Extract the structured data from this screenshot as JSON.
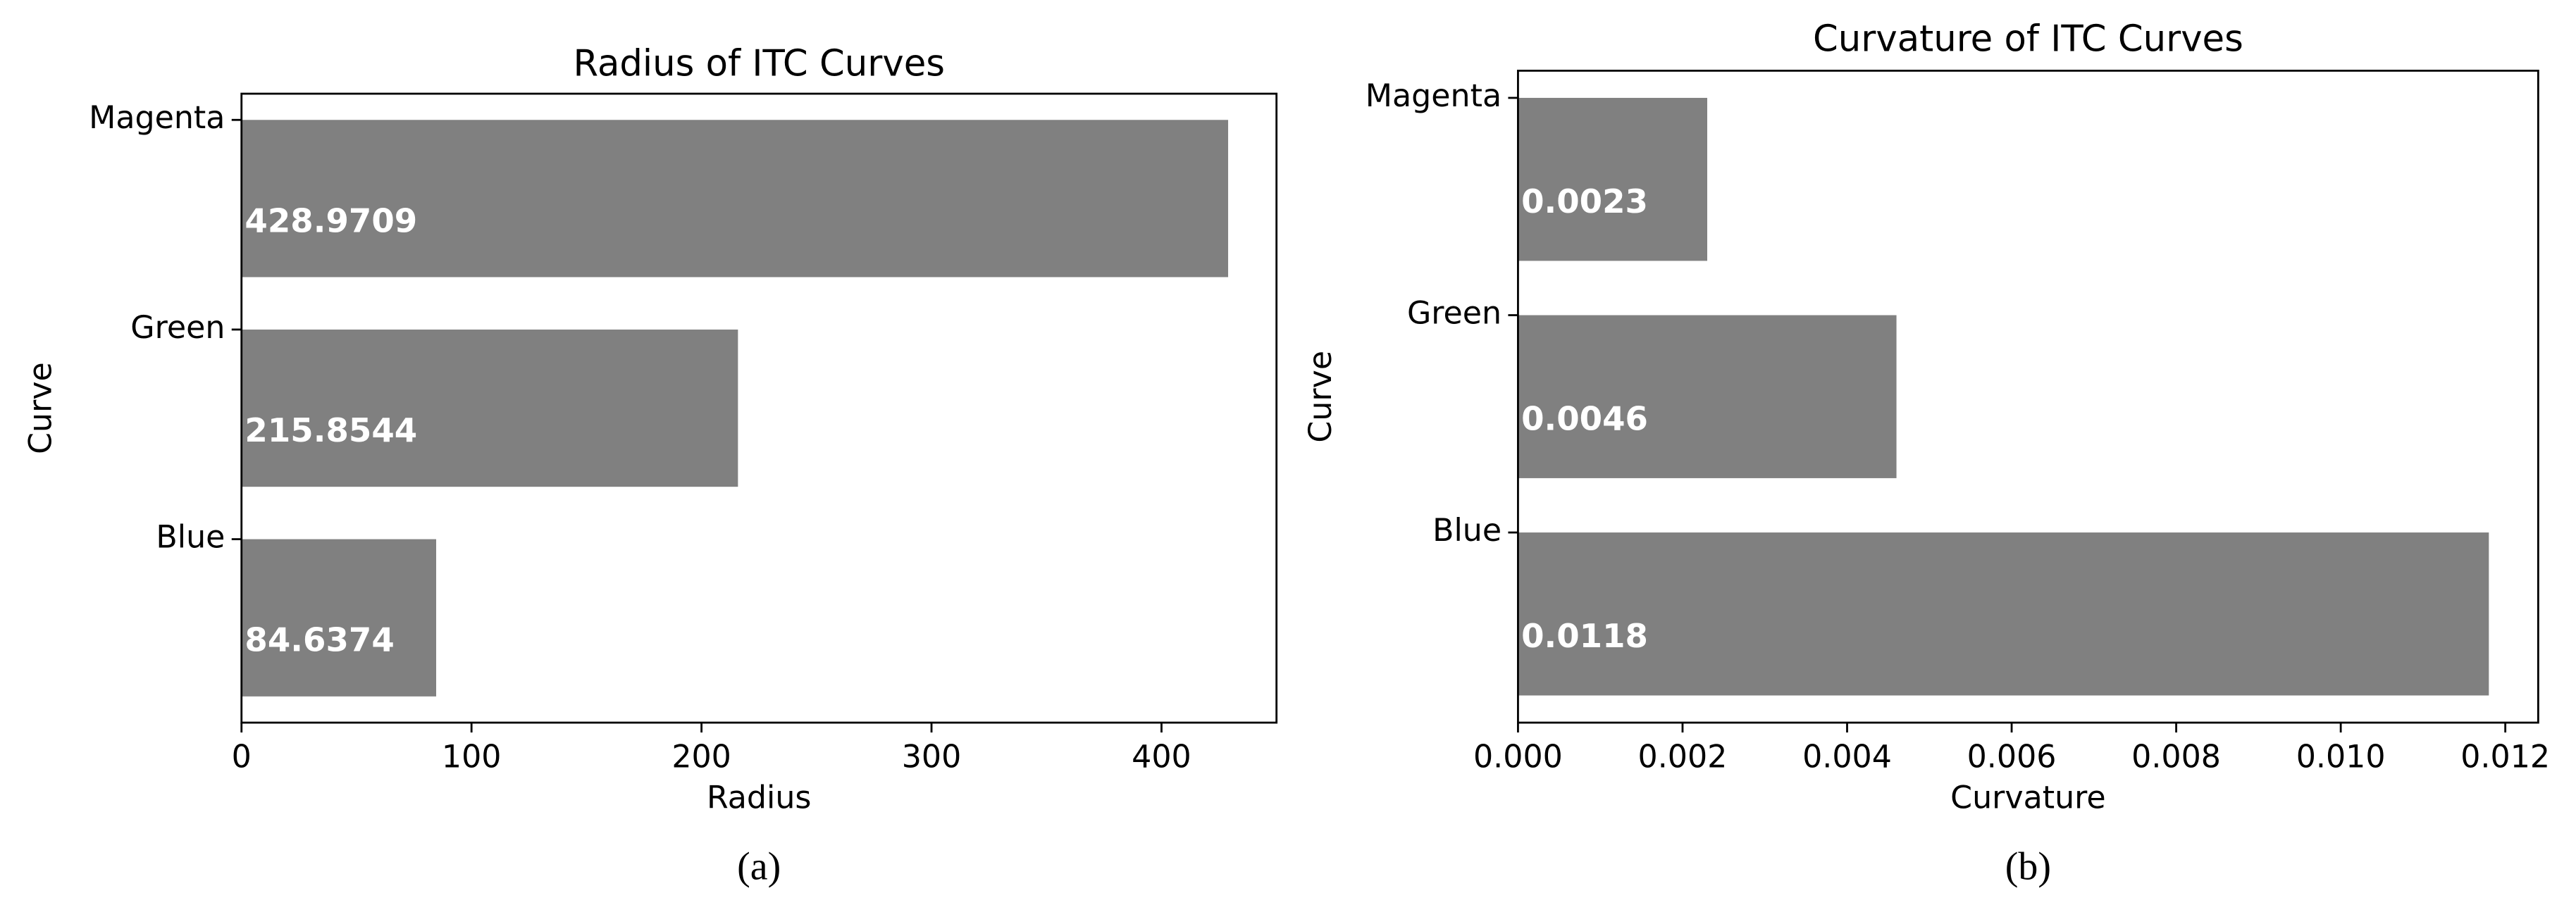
{
  "chart_data": [
    {
      "type": "barh",
      "title": "Radius of ITC Curves",
      "xlabel": "Radius",
      "ylabel": "Curve",
      "caption": "(a)",
      "categories": [
        "Blue",
        "Green",
        "Magenta"
      ],
      "values": [
        84.6374,
        215.8544,
        428.9709
      ],
      "color": "#808080",
      "xlim": [
        0,
        450
      ],
      "xticks": [
        0,
        100,
        200,
        300,
        400
      ]
    },
    {
      "type": "barh",
      "title": "Curvature of ITC Curves",
      "xlabel": "Curvature",
      "ylabel": "Curve",
      "caption": "(b)",
      "categories": [
        "Blue",
        "Green",
        "Magenta"
      ],
      "values": [
        0.0118,
        0.0046,
        0.0023
      ],
      "color": "#808080",
      "xlim": [
        0,
        0.0124
      ],
      "xticks": [
        {
          "value": 0,
          "label": "0.000"
        },
        {
          "value": 0.002,
          "label": "0.002"
        },
        {
          "value": 0.004,
          "label": "0.004"
        },
        {
          "value": 0.006,
          "label": "0.006"
        },
        {
          "value": 0.008,
          "label": "0.008"
        },
        {
          "value": 0.01,
          "label": "0.010"
        },
        {
          "value": 0.012,
          "label": "0.012"
        }
      ]
    }
  ]
}
